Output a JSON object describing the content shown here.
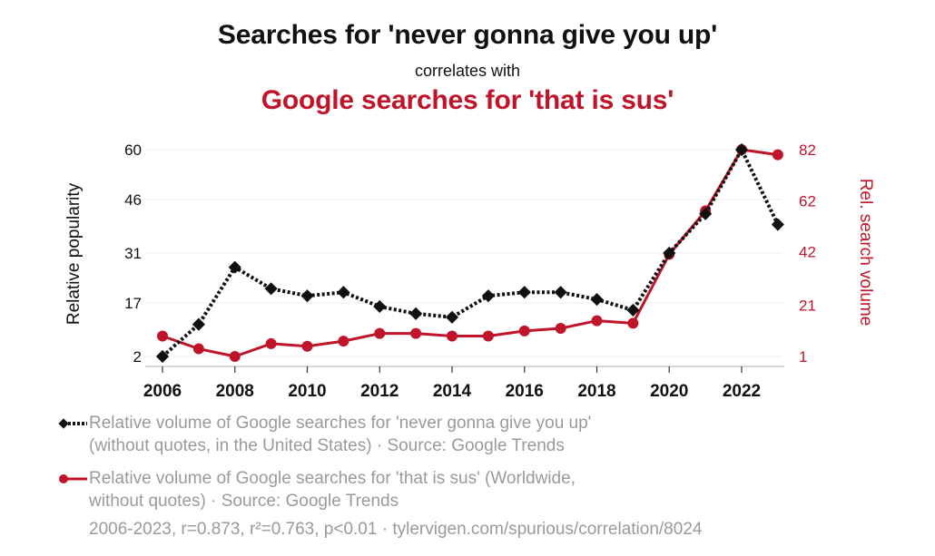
{
  "header": {
    "title": "Searches for 'never gonna give you up'",
    "subtitle": "correlates with",
    "title2": "Google searches for 'that is sus'"
  },
  "colors": {
    "series1": "#111111",
    "series2": "#c0142a",
    "grid": "#eeeeee",
    "axis": "#cccccc",
    "legend_text": "#9a9a9a"
  },
  "legend": {
    "series1_line1": "Relative volume of Google searches for 'never gonna give you up'",
    "series1_line2": "(without quotes, in the United States) · Source: Google Trends",
    "series2_line1": "Relative volume of Google searches for 'that is sus' (Worldwide,",
    "series2_line2": "without quotes) · Source: Google Trends"
  },
  "footer": {
    "stats": "2006-2023, r=0.873, r²=0.763, p<0.01 · tylervigen.com/spurious/correlation/8024"
  },
  "chart_data": {
    "type": "line",
    "title": "Searches for 'never gonna give you up' correlates with Google searches for 'that is sus'",
    "xlabel": "",
    "ylabel": "Relative popularity",
    "ylabel_right": "Rel. search volume",
    "x": [
      2006,
      2007,
      2008,
      2009,
      2010,
      2011,
      2012,
      2013,
      2014,
      2015,
      2016,
      2017,
      2018,
      2019,
      2020,
      2021,
      2022,
      2023
    ],
    "x_ticks": [
      2006,
      2008,
      2010,
      2012,
      2014,
      2016,
      2018,
      2020,
      2022
    ],
    "y_ticks_left": [
      60,
      46,
      31,
      17,
      2
    ],
    "y_ticks_right": [
      82,
      62,
      42,
      21,
      1
    ],
    "ylim_left": [
      2,
      60
    ],
    "ylim_right": [
      1,
      82
    ],
    "grid": true,
    "legend_position": "bottom",
    "series": [
      {
        "name": "Relative volume of Google searches for 'never gonna give you up' (without quotes, in the United States) · Source: Google Trends",
        "axis": "left",
        "style": "dotted, diamond markers",
        "color": "#111111",
        "values": [
          2,
          11,
          27,
          21,
          19,
          20,
          16,
          14,
          13,
          19,
          20,
          20,
          18,
          15,
          31,
          42,
          60,
          39
        ]
      },
      {
        "name": "Relative volume of Google searches for 'that is sus' (Worldwide, without quotes) · Source: Google Trends",
        "axis": "right",
        "style": "solid, circle markers",
        "color": "#c0142a",
        "values": [
          9,
          4,
          1,
          6,
          5,
          7,
          10,
          10,
          9,
          9,
          11,
          12,
          15,
          14,
          41,
          58,
          82,
          80
        ]
      }
    ],
    "annotations": [
      "2006-2023, r=0.873, r²=0.763, p<0.01 · tylervigen.com/spurious/correlation/8024"
    ]
  }
}
